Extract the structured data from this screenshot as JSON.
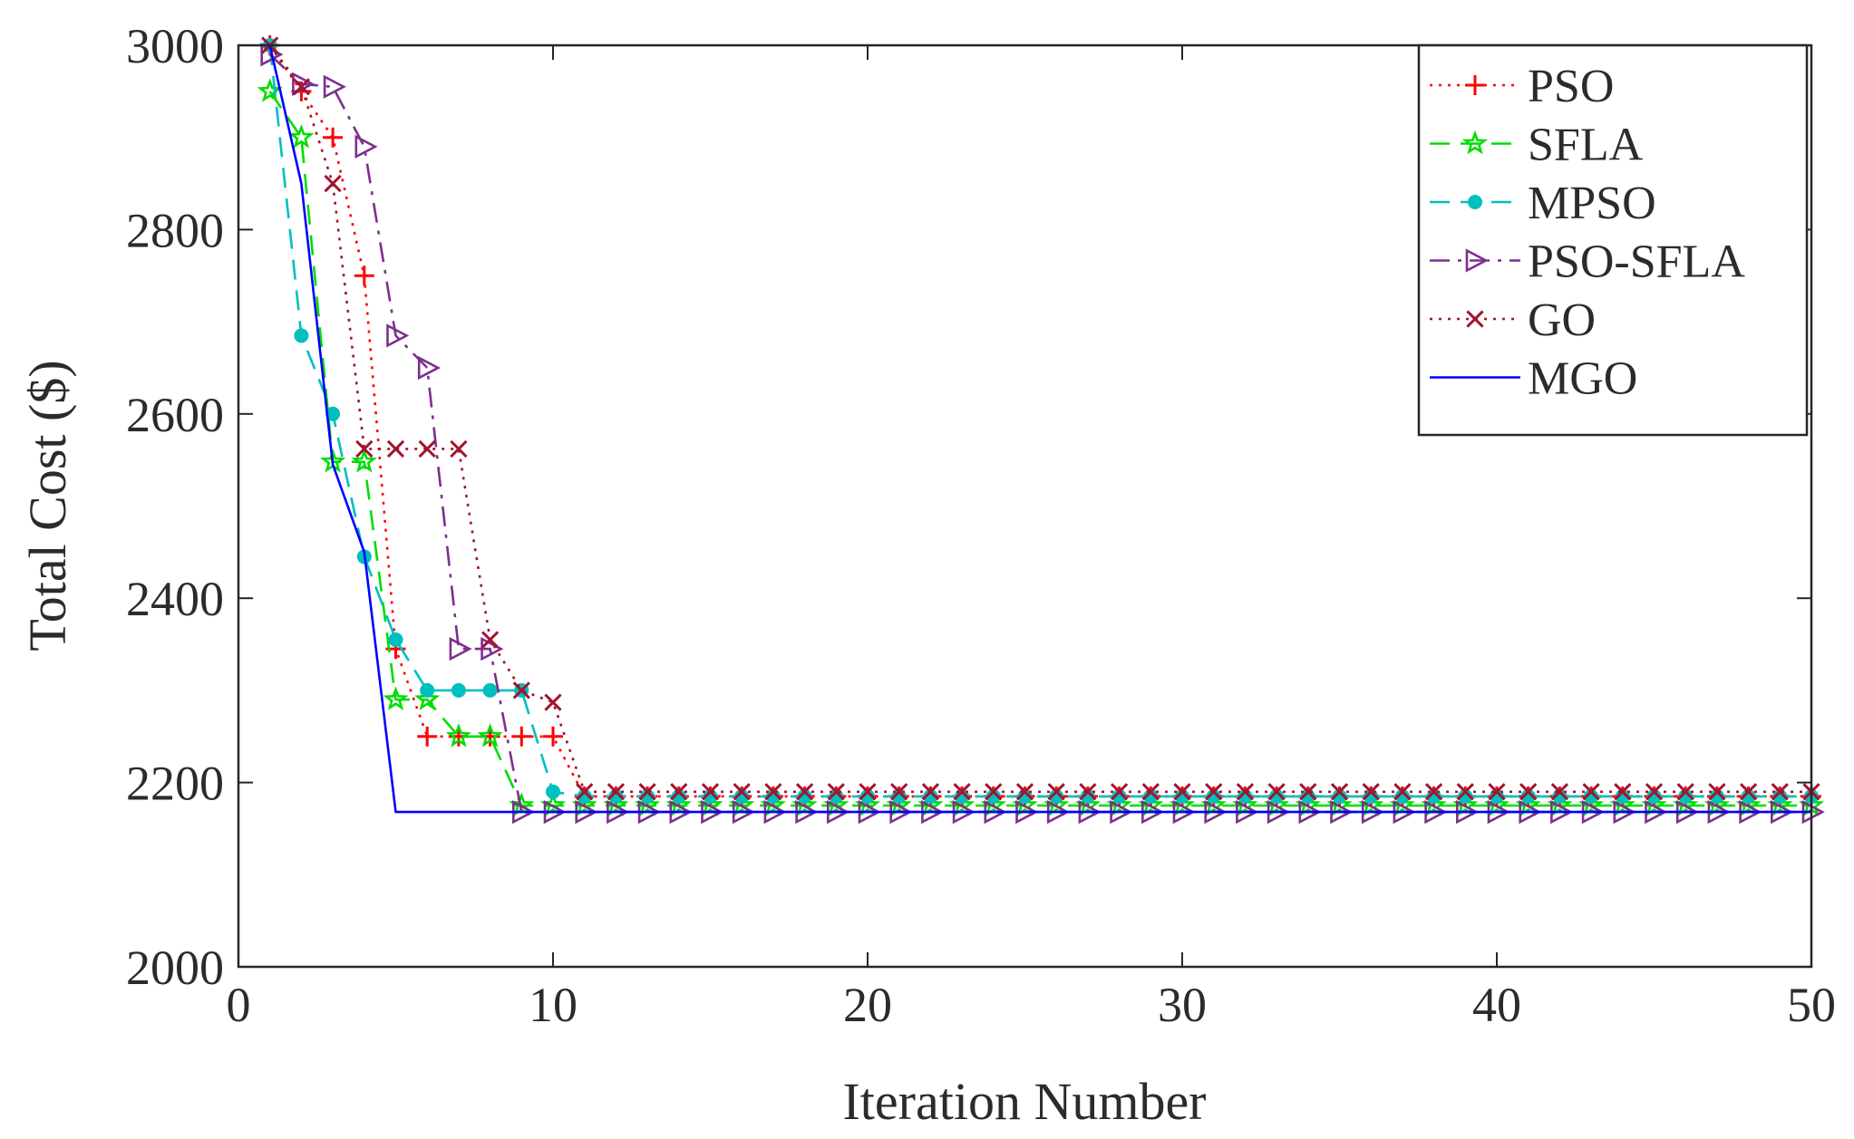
{
  "chart_data": {
    "type": "line",
    "xlabel": "Iteration Number",
    "ylabel": "Total Cost ($)",
    "xlim": [
      0,
      50
    ],
    "ylim": [
      2000,
      3000
    ],
    "xticks": [
      0,
      10,
      20,
      30,
      40,
      50
    ],
    "yticks": [
      2000,
      2200,
      2400,
      2600,
      2800,
      3000
    ],
    "xtick_labels": [
      "0",
      "10",
      "20",
      "30",
      "40",
      "50"
    ],
    "ytick_labels": [
      "2000",
      "2200",
      "2400",
      "2600",
      "2800",
      "3000"
    ],
    "grid": false,
    "legend_position": "top-right",
    "series": [
      {
        "name": "PSO",
        "color": "#ff0000",
        "line_style": "dotted",
        "marker": "plus",
        "x": [
          1,
          2,
          3,
          4,
          5,
          6,
          7,
          8,
          9,
          10,
          11,
          12,
          13,
          14,
          15,
          16,
          17,
          18,
          19,
          20,
          21,
          22,
          23,
          24,
          25,
          26,
          27,
          28,
          29,
          30,
          31,
          32,
          33,
          34,
          35,
          36,
          37,
          38,
          39,
          40,
          41,
          42,
          43,
          44,
          45,
          46,
          47,
          48,
          49,
          50
        ],
        "values": [
          3000,
          2950,
          2900,
          2750,
          2345,
          2250,
          2250,
          2250,
          2250,
          2250,
          2185,
          2185,
          2185,
          2185,
          2185,
          2185,
          2185,
          2185,
          2185,
          2185,
          2185,
          2185,
          2185,
          2185,
          2185,
          2185,
          2185,
          2185,
          2185,
          2185,
          2185,
          2185,
          2185,
          2185,
          2185,
          2185,
          2185,
          2185,
          2185,
          2185,
          2185,
          2185,
          2185,
          2185,
          2185,
          2185,
          2185,
          2185,
          2185,
          2185
        ]
      },
      {
        "name": "SFLA",
        "color": "#00dd00",
        "line_style": "dashed",
        "marker": "star",
        "x": [
          1,
          2,
          3,
          4,
          5,
          6,
          7,
          8,
          9,
          10,
          11,
          12,
          13,
          14,
          15,
          16,
          17,
          18,
          19,
          20,
          21,
          22,
          23,
          24,
          25,
          26,
          27,
          28,
          29,
          30,
          31,
          32,
          33,
          34,
          35,
          36,
          37,
          38,
          39,
          40,
          41,
          42,
          43,
          44,
          45,
          46,
          47,
          48,
          49,
          50
        ],
        "values": [
          2950,
          2900,
          2548,
          2548,
          2290,
          2290,
          2250,
          2250,
          2175,
          2175,
          2175,
          2175,
          2175,
          2175,
          2175,
          2175,
          2175,
          2175,
          2175,
          2175,
          2175,
          2175,
          2175,
          2175,
          2175,
          2175,
          2175,
          2175,
          2175,
          2175,
          2175,
          2175,
          2175,
          2175,
          2175,
          2175,
          2175,
          2175,
          2175,
          2175,
          2175,
          2175,
          2175,
          2175,
          2175,
          2175,
          2175,
          2175,
          2175,
          2175
        ]
      },
      {
        "name": "MPSO",
        "color": "#00bfbf",
        "line_style": "dashed",
        "marker": "dot",
        "x": [
          1,
          2,
          3,
          4,
          5,
          6,
          7,
          8,
          9,
          10,
          11,
          12,
          13,
          14,
          15,
          16,
          17,
          18,
          19,
          20,
          21,
          22,
          23,
          24,
          25,
          26,
          27,
          28,
          29,
          30,
          31,
          32,
          33,
          34,
          35,
          36,
          37,
          38,
          39,
          40,
          41,
          42,
          43,
          44,
          45,
          46,
          47,
          48,
          49,
          50
        ],
        "values": [
          3000,
          2685,
          2600,
          2445,
          2355,
          2300,
          2300,
          2300,
          2300,
          2190,
          2185,
          2185,
          2185,
          2185,
          2185,
          2185,
          2185,
          2185,
          2185,
          2185,
          2185,
          2185,
          2185,
          2185,
          2185,
          2185,
          2185,
          2185,
          2185,
          2185,
          2185,
          2185,
          2185,
          2185,
          2185,
          2185,
          2185,
          2185,
          2185,
          2185,
          2185,
          2185,
          2185,
          2185,
          2185,
          2185,
          2185,
          2185,
          2185,
          2185
        ]
      },
      {
        "name": "PSO-SFLA",
        "color": "#7e2f8e",
        "line_style": "dashdot",
        "marker": "triangle-right",
        "x": [
          1,
          2,
          3,
          4,
          5,
          6,
          7,
          8,
          9,
          10,
          11,
          12,
          13,
          14,
          15,
          16,
          17,
          18,
          19,
          20,
          21,
          22,
          23,
          24,
          25,
          26,
          27,
          28,
          29,
          30,
          31,
          32,
          33,
          34,
          35,
          36,
          37,
          38,
          39,
          40,
          41,
          42,
          43,
          44,
          45,
          46,
          47,
          48,
          49,
          50
        ],
        "values": [
          2990,
          2958,
          2955,
          2890,
          2685,
          2650,
          2345,
          2345,
          2168,
          2168,
          2168,
          2168,
          2168,
          2168,
          2168,
          2168,
          2168,
          2168,
          2168,
          2168,
          2168,
          2168,
          2168,
          2168,
          2168,
          2168,
          2168,
          2168,
          2168,
          2168,
          2168,
          2168,
          2168,
          2168,
          2168,
          2168,
          2168,
          2168,
          2168,
          2168,
          2168,
          2168,
          2168,
          2168,
          2168,
          2168,
          2168,
          2168,
          2168,
          2168
        ]
      },
      {
        "name": "GO",
        "color": "#a2142f",
        "line_style": "dotted",
        "marker": "x",
        "x": [
          1,
          2,
          3,
          4,
          5,
          6,
          7,
          8,
          9,
          10,
          11,
          12,
          13,
          14,
          15,
          16,
          17,
          18,
          19,
          20,
          21,
          22,
          23,
          24,
          25,
          26,
          27,
          28,
          29,
          30,
          31,
          32,
          33,
          34,
          35,
          36,
          37,
          38,
          39,
          40,
          41,
          42,
          43,
          44,
          45,
          46,
          47,
          48,
          49,
          50
        ],
        "values": [
          3000,
          2955,
          2850,
          2562,
          2562,
          2562,
          2562,
          2355,
          2300,
          2287,
          2190,
          2190,
          2190,
          2190,
          2190,
          2190,
          2190,
          2190,
          2190,
          2190,
          2190,
          2190,
          2190,
          2190,
          2190,
          2190,
          2190,
          2190,
          2190,
          2190,
          2190,
          2190,
          2190,
          2190,
          2190,
          2190,
          2190,
          2190,
          2190,
          2190,
          2190,
          2190,
          2190,
          2190,
          2190,
          2190,
          2190,
          2190,
          2190,
          2190
        ]
      },
      {
        "name": "MGO",
        "color": "#0000ff",
        "line_style": "solid",
        "marker": "none",
        "x": [
          1,
          2,
          3,
          4,
          5,
          50
        ],
        "values": [
          3000,
          2850,
          2545,
          2450,
          2168,
          2168
        ]
      }
    ]
  }
}
